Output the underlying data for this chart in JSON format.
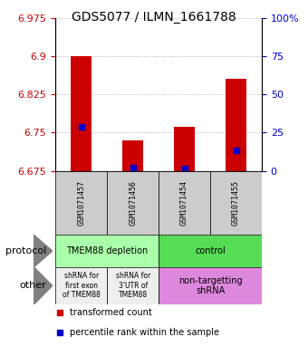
{
  "title": "GDS5077 / ILMN_1661788",
  "samples": [
    "GSM1071457",
    "GSM1071456",
    "GSM1071454",
    "GSM1071455"
  ],
  "y_min": 6.675,
  "y_max": 6.975,
  "yticks": [
    6.675,
    6.75,
    6.825,
    6.9,
    6.975
  ],
  "ytick_labels_left": [
    "6.675",
    "6.75",
    "6.825",
    "6.9",
    "6.975"
  ],
  "ytick_labels_right": [
    "0",
    "25",
    "50",
    "75",
    "100%"
  ],
  "bar_values": [
    6.9,
    6.735,
    6.762,
    6.855
  ],
  "blue_marker_values": [
    6.762,
    6.681,
    6.679,
    6.716
  ],
  "bar_bottom": 6.675,
  "bar_color": "#cc0000",
  "blue_color": "#0000cc",
  "protocol_labels": [
    "TMEM88 depletion",
    "control"
  ],
  "protocol_row_color1": "#aaffaa",
  "protocol_row_color2": "#55dd55",
  "other_labels_left1": "shRNA for\nfirst exon\nof TMEM88",
  "other_labels_left2": "shRNA for\n3'UTR of\nTMEM88",
  "other_labels_right": "non-targetting\nshRNA",
  "other_row_color_left": "#eeeeee",
  "other_row_color_right": "#dd88dd",
  "legend_red_label": "transformed count",
  "legend_blue_label": "percentile rank within the sample",
  "sample_box_color": "#cccccc",
  "grid_color": "#888888",
  "left_tick_color": "#cc0000",
  "right_tick_color": "#0000cc"
}
